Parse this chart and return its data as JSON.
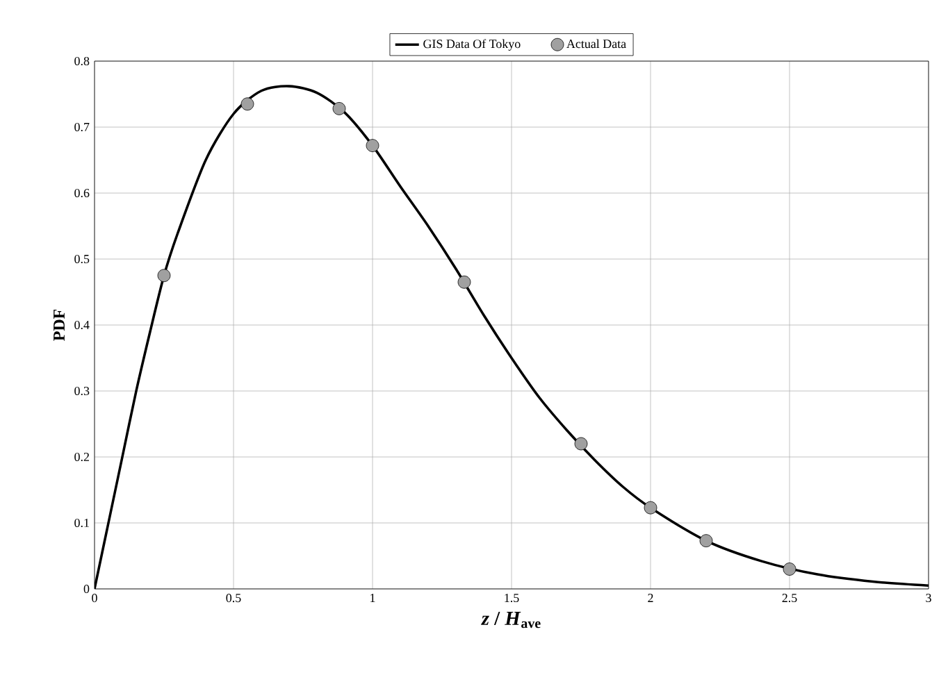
{
  "chart_data": {
    "type": "line",
    "xlabel": "*z* / *H*$_{ave}$",
    "ylabel": "PDF",
    "xlim": [
      0,
      3
    ],
    "xticks": [
      0,
      0.5,
      1,
      1.5,
      2,
      2.5,
      3
    ],
    "ylim": [
      0,
      0.8
    ],
    "yticks": [
      0,
      0.1,
      0.2,
      0.3,
      0.4,
      0.5,
      0.6,
      0.7,
      0.8
    ],
    "grid": true,
    "legend": "top",
    "series": [
      {
        "name": "GIS Data Of Tokyo",
        "color": "#000000",
        "marker": "none",
        "line_style": "solid",
        "x": [
          0,
          0.05,
          0.1,
          0.15,
          0.2,
          0.25,
          0.3,
          0.4,
          0.5,
          0.6,
          0.7,
          0.8,
          0.9,
          1.0,
          1.1,
          1.2,
          1.3,
          1.4,
          1.5,
          1.6,
          1.7,
          1.8,
          1.9,
          2.0,
          2.2,
          2.4,
          2.6,
          2.8,
          3.0
        ],
        "values": [
          0,
          0.1,
          0.2,
          0.3,
          0.39,
          0.475,
          0.54,
          0.65,
          0.72,
          0.755,
          0.762,
          0.752,
          0.722,
          0.672,
          0.61,
          0.55,
          0.485,
          0.415,
          0.35,
          0.29,
          0.24,
          0.195,
          0.155,
          0.123,
          0.073,
          0.042,
          0.022,
          0.011,
          0.005
        ]
      },
      {
        "name": "Actual Data",
        "type": "scatter",
        "color": "#a0a0a0",
        "marker": "circle",
        "x": [
          0.25,
          0.55,
          0.88,
          1.0,
          1.33,
          1.75,
          2.0,
          2.2,
          2.5
        ],
        "values": [
          0.475,
          0.735,
          0.728,
          0.672,
          0.465,
          0.22,
          0.123,
          0.073,
          0.03
        ]
      }
    ]
  }
}
